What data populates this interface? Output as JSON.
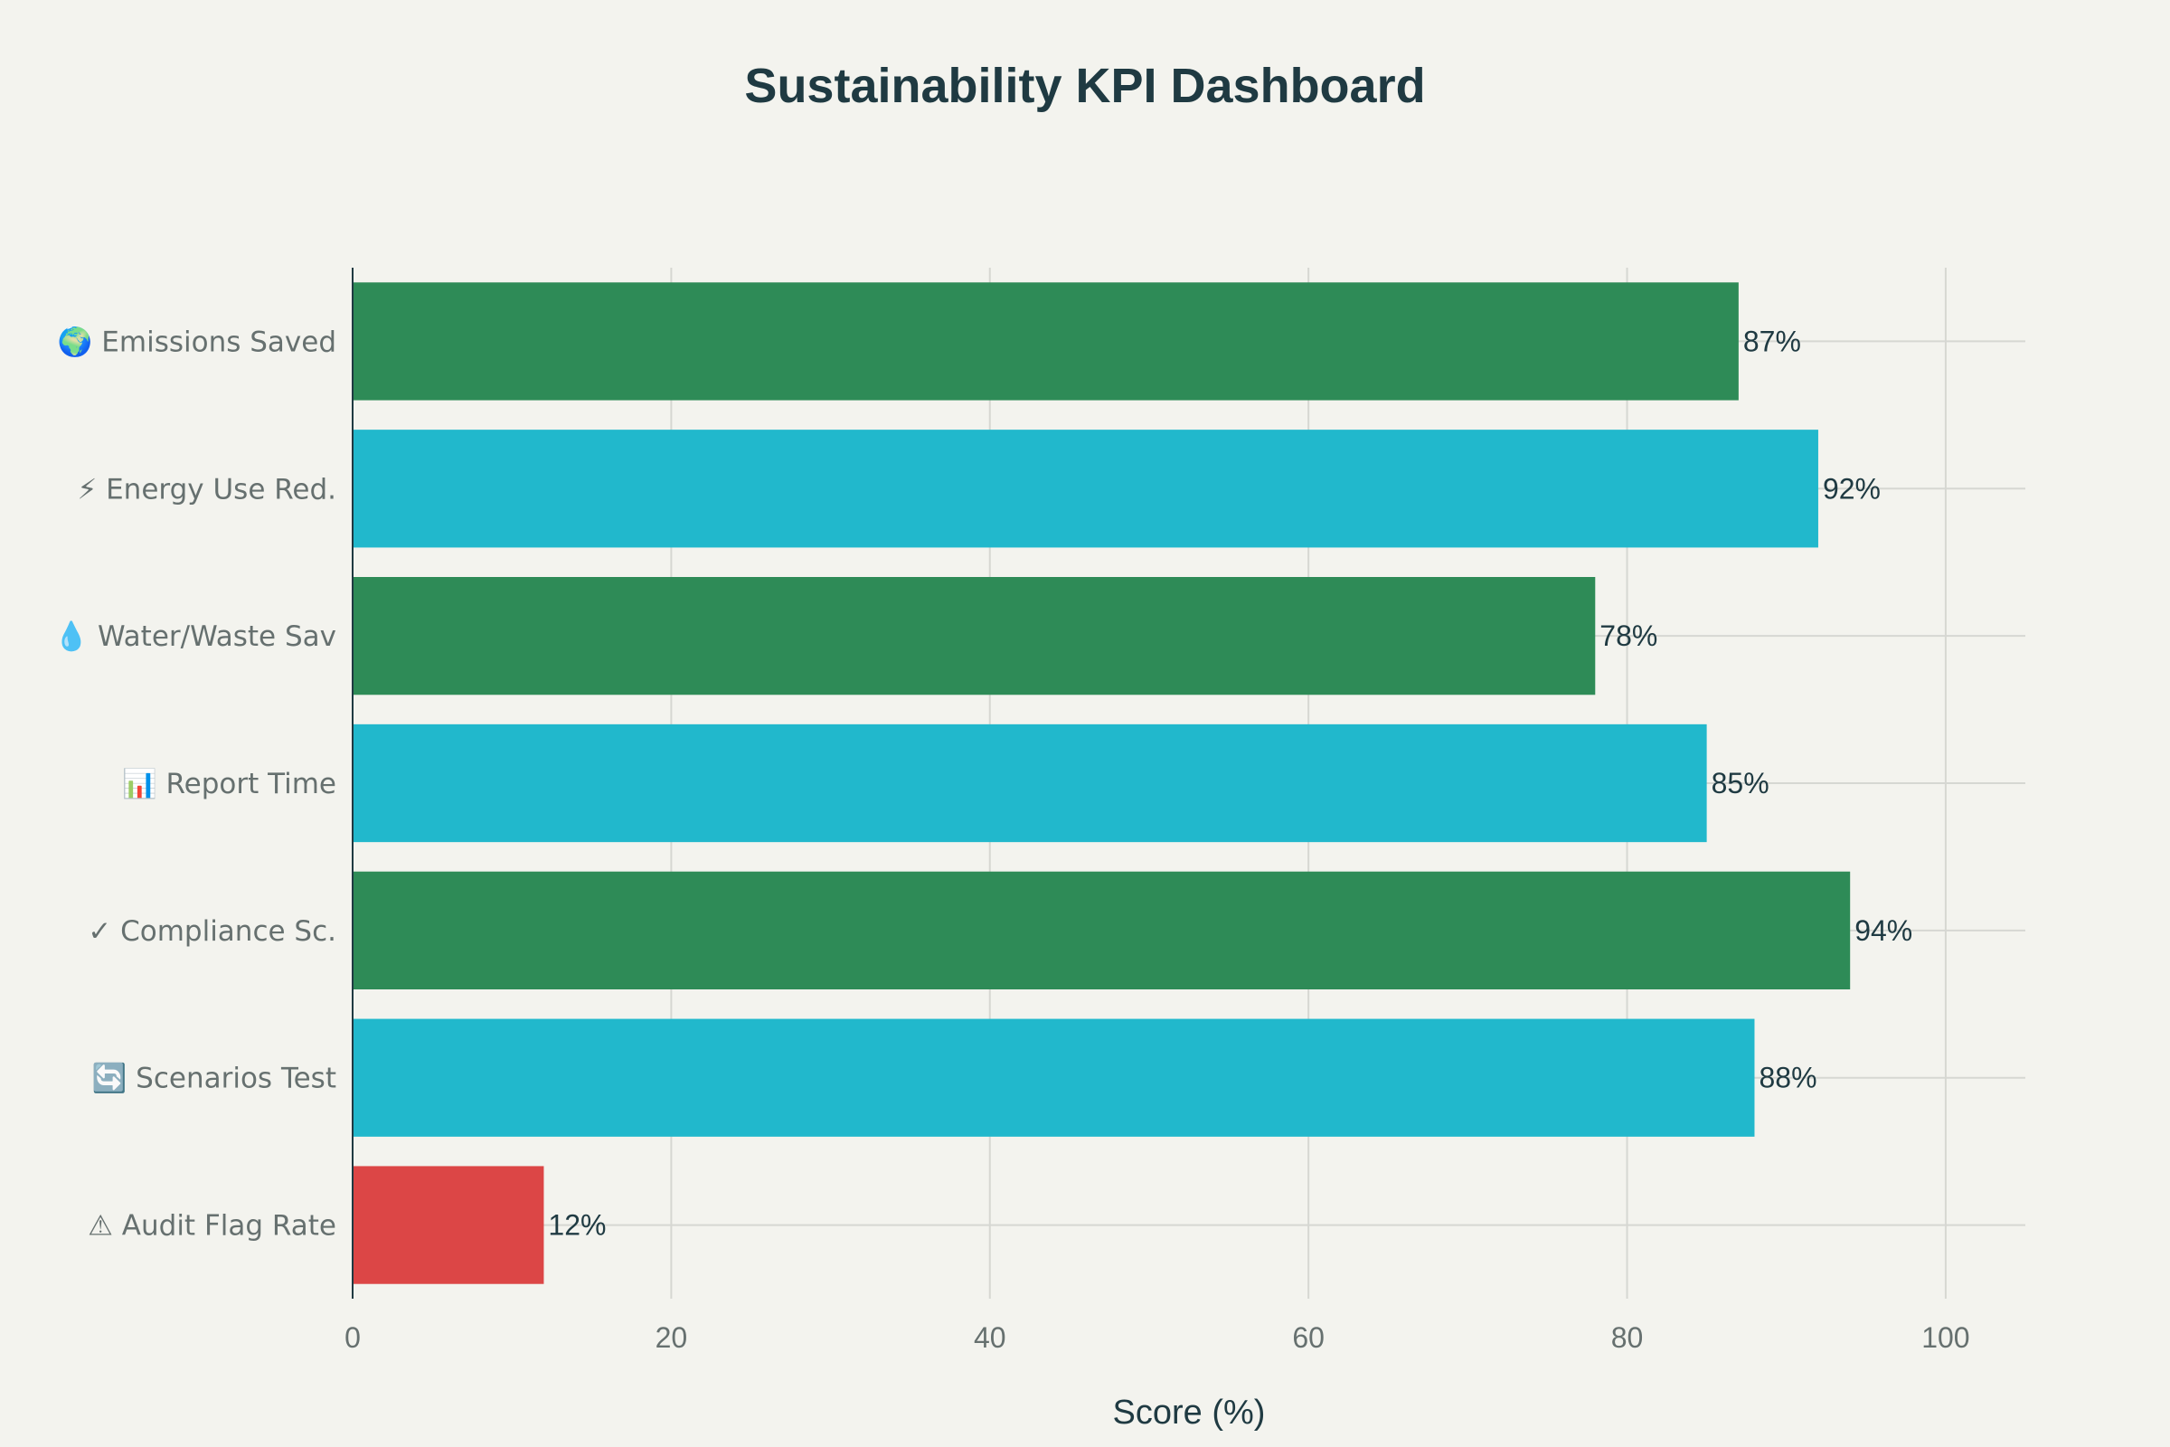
{
  "chart_data": {
    "type": "bar",
    "orientation": "horizontal",
    "title": "Sustainability KPI Dashboard",
    "xlabel": "Score (%)",
    "ylabel": "",
    "xlim": [
      0,
      105
    ],
    "xticks": [
      0,
      20,
      40,
      60,
      80,
      100
    ],
    "grid": true,
    "categories": [
      "🌍 Emissions Saved",
      "⚡ Energy Use Red.",
      "💧 Water/Waste Sav",
      "📊 Report Time",
      "✓ Compliance Sc.",
      "🔄 Scenarios Test",
      "⚠ Audit Flag Rate"
    ],
    "values": [
      87,
      92,
      78,
      85,
      94,
      88,
      12
    ],
    "value_labels": [
      "87%",
      "92%",
      "78%",
      "85%",
      "94%",
      "88%",
      "12%"
    ],
    "colors": [
      "#2e8b57",
      "#21b8cc",
      "#2e8b57",
      "#21b8cc",
      "#2e8b57",
      "#21b8cc",
      "#dc4646"
    ]
  }
}
